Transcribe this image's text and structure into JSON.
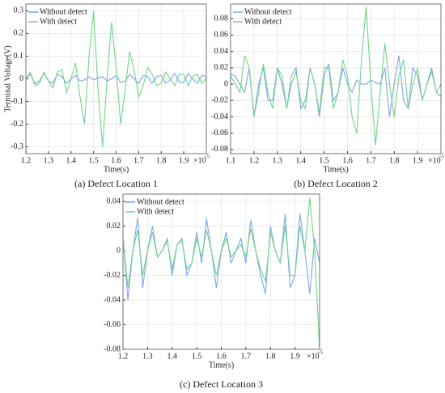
{
  "chart_data": [
    {
      "type": "line",
      "caption": "(a) Defect Location 1",
      "xlabel": "Time(s)",
      "ylabel": "Terminal Voltage(V)",
      "x_scale_base": "×10",
      "x_scale_exponent": "-5",
      "x": [
        1.2,
        1.22,
        1.24,
        1.26,
        1.28,
        1.3,
        1.32,
        1.34,
        1.36,
        1.38,
        1.4,
        1.42,
        1.44,
        1.46,
        1.48,
        1.5,
        1.52,
        1.54,
        1.56,
        1.58,
        1.6,
        1.62,
        1.64,
        1.66,
        1.68,
        1.7,
        1.72,
        1.74,
        1.76,
        1.78,
        1.8,
        1.82,
        1.84,
        1.86,
        1.88,
        1.9,
        1.92,
        1.94,
        1.96,
        1.98,
        2.0
      ],
      "series": [
        {
          "name": "Without detect",
          "color": "#7fa5e8",
          "values": [
            0,
            0.02,
            -0.02,
            -0.01,
            0.025,
            -0.01,
            -0.02,
            0.02,
            0.01,
            -0.02,
            0,
            0.015,
            -0.01,
            -0.005,
            0.01,
            -0.005,
            0.005,
            0.01,
            -0.01,
            0,
            0.015,
            -0.015,
            -0.01,
            0.02,
            0,
            -0.02,
            0.015,
            0.01,
            -0.02,
            0.01,
            0.015,
            -0.02,
            -0.005,
            0.025,
            -0.015,
            -0.015,
            0.025,
            0,
            -0.02,
            0.015,
            0.01
          ]
        },
        {
          "name": "With detect",
          "color": "#6fd68a",
          "values": [
            0,
            0.03,
            -0.03,
            -0.02,
            0.03,
            -0.01,
            -0.04,
            0.03,
            0.04,
            -0.06,
            0,
            0.07,
            -0.08,
            -0.2,
            0.1,
            0.3,
            -0.05,
            -0.3,
            0,
            0.25,
            0.05,
            -0.2,
            -0.05,
            0.12,
            0.04,
            -0.08,
            -0.03,
            0.05,
            0.02,
            -0.03,
            -0.02,
            0.03,
            0,
            -0.03,
            0.02,
            0.02,
            -0.03,
            0.01,
            0.02,
            -0.02,
            0
          ]
        }
      ],
      "xlim": [
        1.2,
        2.0
      ],
      "xticks": [
        1.2,
        1.3,
        1.4,
        1.5,
        1.6,
        1.7,
        1.8,
        1.9
      ],
      "ylim": [
        -0.33,
        0.33
      ],
      "yticks": [
        -0.3,
        -0.2,
        -0.1,
        0,
        0.1,
        0.2,
        0.3
      ],
      "grid": true,
      "legend": "upper-left"
    },
    {
      "type": "line",
      "caption": "(b) Defect Location 2",
      "xlabel": "Time(s)",
      "x_scale_base": "×10",
      "x_scale_exponent": "-5",
      "x": [
        1.1,
        1.12,
        1.14,
        1.16,
        1.18,
        1.2,
        1.22,
        1.24,
        1.26,
        1.28,
        1.3,
        1.32,
        1.34,
        1.36,
        1.38,
        1.4,
        1.42,
        1.44,
        1.46,
        1.48,
        1.5,
        1.52,
        1.54,
        1.56,
        1.58,
        1.6,
        1.62,
        1.64,
        1.66,
        1.68,
        1.7,
        1.72,
        1.74,
        1.76,
        1.78,
        1.8,
        1.82,
        1.84,
        1.86,
        1.88,
        1.9,
        1.92,
        1.94,
        1.96,
        1.98,
        2.0
      ],
      "series": [
        {
          "name": "Without detect",
          "color": "#7fa5e8",
          "values": [
            0.012,
            0.01,
            0,
            -0.01,
            0.02,
            -0.04,
            0,
            0.02,
            -0.02,
            -0.02,
            0.02,
            0,
            -0.03,
            0.01,
            0.02,
            -0.03,
            -0.02,
            0.02,
            0,
            -0.04,
            0.01,
            0.025,
            -0.02,
            -0.01,
            0.02,
            0,
            -0.01,
            0.005,
            0,
            0,
            0.005,
            0.002,
            0,
            0.02,
            -0.04,
            0,
            0.035,
            -0.02,
            -0.03,
            0.02,
            0.01,
            -0.02,
            0,
            0.02,
            -0.01,
            -0.015
          ]
        },
        {
          "name": "With detect",
          "color": "#6fd68a",
          "values": [
            0.01,
            0,
            -0.01,
            0.035,
            0.02,
            -0.04,
            -0.01,
            0.025,
            -0.01,
            -0.03,
            0.02,
            0.01,
            -0.03,
            0,
            0.015,
            -0.02,
            -0.03,
            0.02,
            0,
            -0.035,
            0.02,
            0.02,
            -0.03,
            -0.01,
            0.03,
            0.01,
            -0.04,
            -0.06,
            0.03,
            0.095,
            0,
            -0.075,
            -0.01,
            0.05,
            0,
            -0.04,
            0.01,
            0.03,
            -0.03,
            0,
            0.02,
            -0.02,
            0,
            0.015,
            -0.01,
            0
          ]
        }
      ],
      "xlim": [
        1.1,
        2.0
      ],
      "xticks": [
        1.1,
        1.2,
        1.3,
        1.4,
        1.5,
        1.6,
        1.7,
        1.8,
        1.9
      ],
      "ylim": [
        -0.085,
        0.098
      ],
      "yticks": [
        -0.08,
        -0.06,
        -0.04,
        -0.02,
        0,
        0.02,
        0.04,
        0.06,
        0.08
      ],
      "grid": true,
      "legend": "upper-left"
    },
    {
      "type": "line",
      "caption": "(c) Defect Location 3",
      "xlabel": "Time(s)",
      "x_scale_base": "×10",
      "x_scale_exponent": "-5",
      "x": [
        1.2,
        1.22,
        1.24,
        1.26,
        1.28,
        1.3,
        1.32,
        1.34,
        1.36,
        1.38,
        1.4,
        1.42,
        1.44,
        1.46,
        1.48,
        1.5,
        1.52,
        1.54,
        1.56,
        1.58,
        1.6,
        1.62,
        1.64,
        1.66,
        1.68,
        1.7,
        1.72,
        1.74,
        1.76,
        1.78,
        1.8,
        1.82,
        1.84,
        1.86,
        1.88,
        1.9,
        1.92,
        1.94,
        1.96,
        1.98,
        2.0
      ],
      "series": [
        {
          "name": "Without detect",
          "color": "#7fa5e8",
          "values": [
            0.01,
            -0.04,
            0,
            0.027,
            -0.03,
            0,
            0.02,
            -0.005,
            0,
            0.01,
            -0.02,
            0.005,
            0.01,
            -0.02,
            -0.01,
            0.015,
            -0.01,
            0.026,
            0,
            -0.03,
            0,
            0.015,
            -0.01,
            0,
            0.01,
            -0.01,
            0.025,
            0,
            -0.02,
            -0.035,
            0.02,
            0,
            -0.01,
            0.03,
            -0.03,
            -0.02,
            0.03,
            0,
            -0.035,
            0.01,
            -0.01
          ]
        },
        {
          "name": "With detect",
          "color": "#6fd68a",
          "values": [
            0.01,
            -0.03,
            0,
            0.017,
            -0.02,
            0,
            0.015,
            -0.005,
            0,
            0.008,
            -0.015,
            0.005,
            0.008,
            -0.015,
            -0.01,
            0.01,
            -0.005,
            0.017,
            0,
            -0.02,
            0,
            0.01,
            -0.005,
            0,
            0.005,
            -0.005,
            0.018,
            0,
            -0.015,
            -0.025,
            0.015,
            0,
            -0.01,
            0.02,
            -0.02,
            -0.02,
            0.02,
            0,
            0.043,
            0,
            -0.08
          ]
        }
      ],
      "xlim": [
        1.2,
        2.0
      ],
      "xticks": [
        1.2,
        1.3,
        1.4,
        1.5,
        1.6,
        1.7,
        1.8,
        1.9
      ],
      "ylim": [
        -0.08,
        0.046
      ],
      "yticks": [
        -0.08,
        -0.06,
        -0.04,
        -0.02,
        0,
        0.02,
        0.04
      ],
      "grid": true,
      "legend": "upper-left"
    }
  ]
}
